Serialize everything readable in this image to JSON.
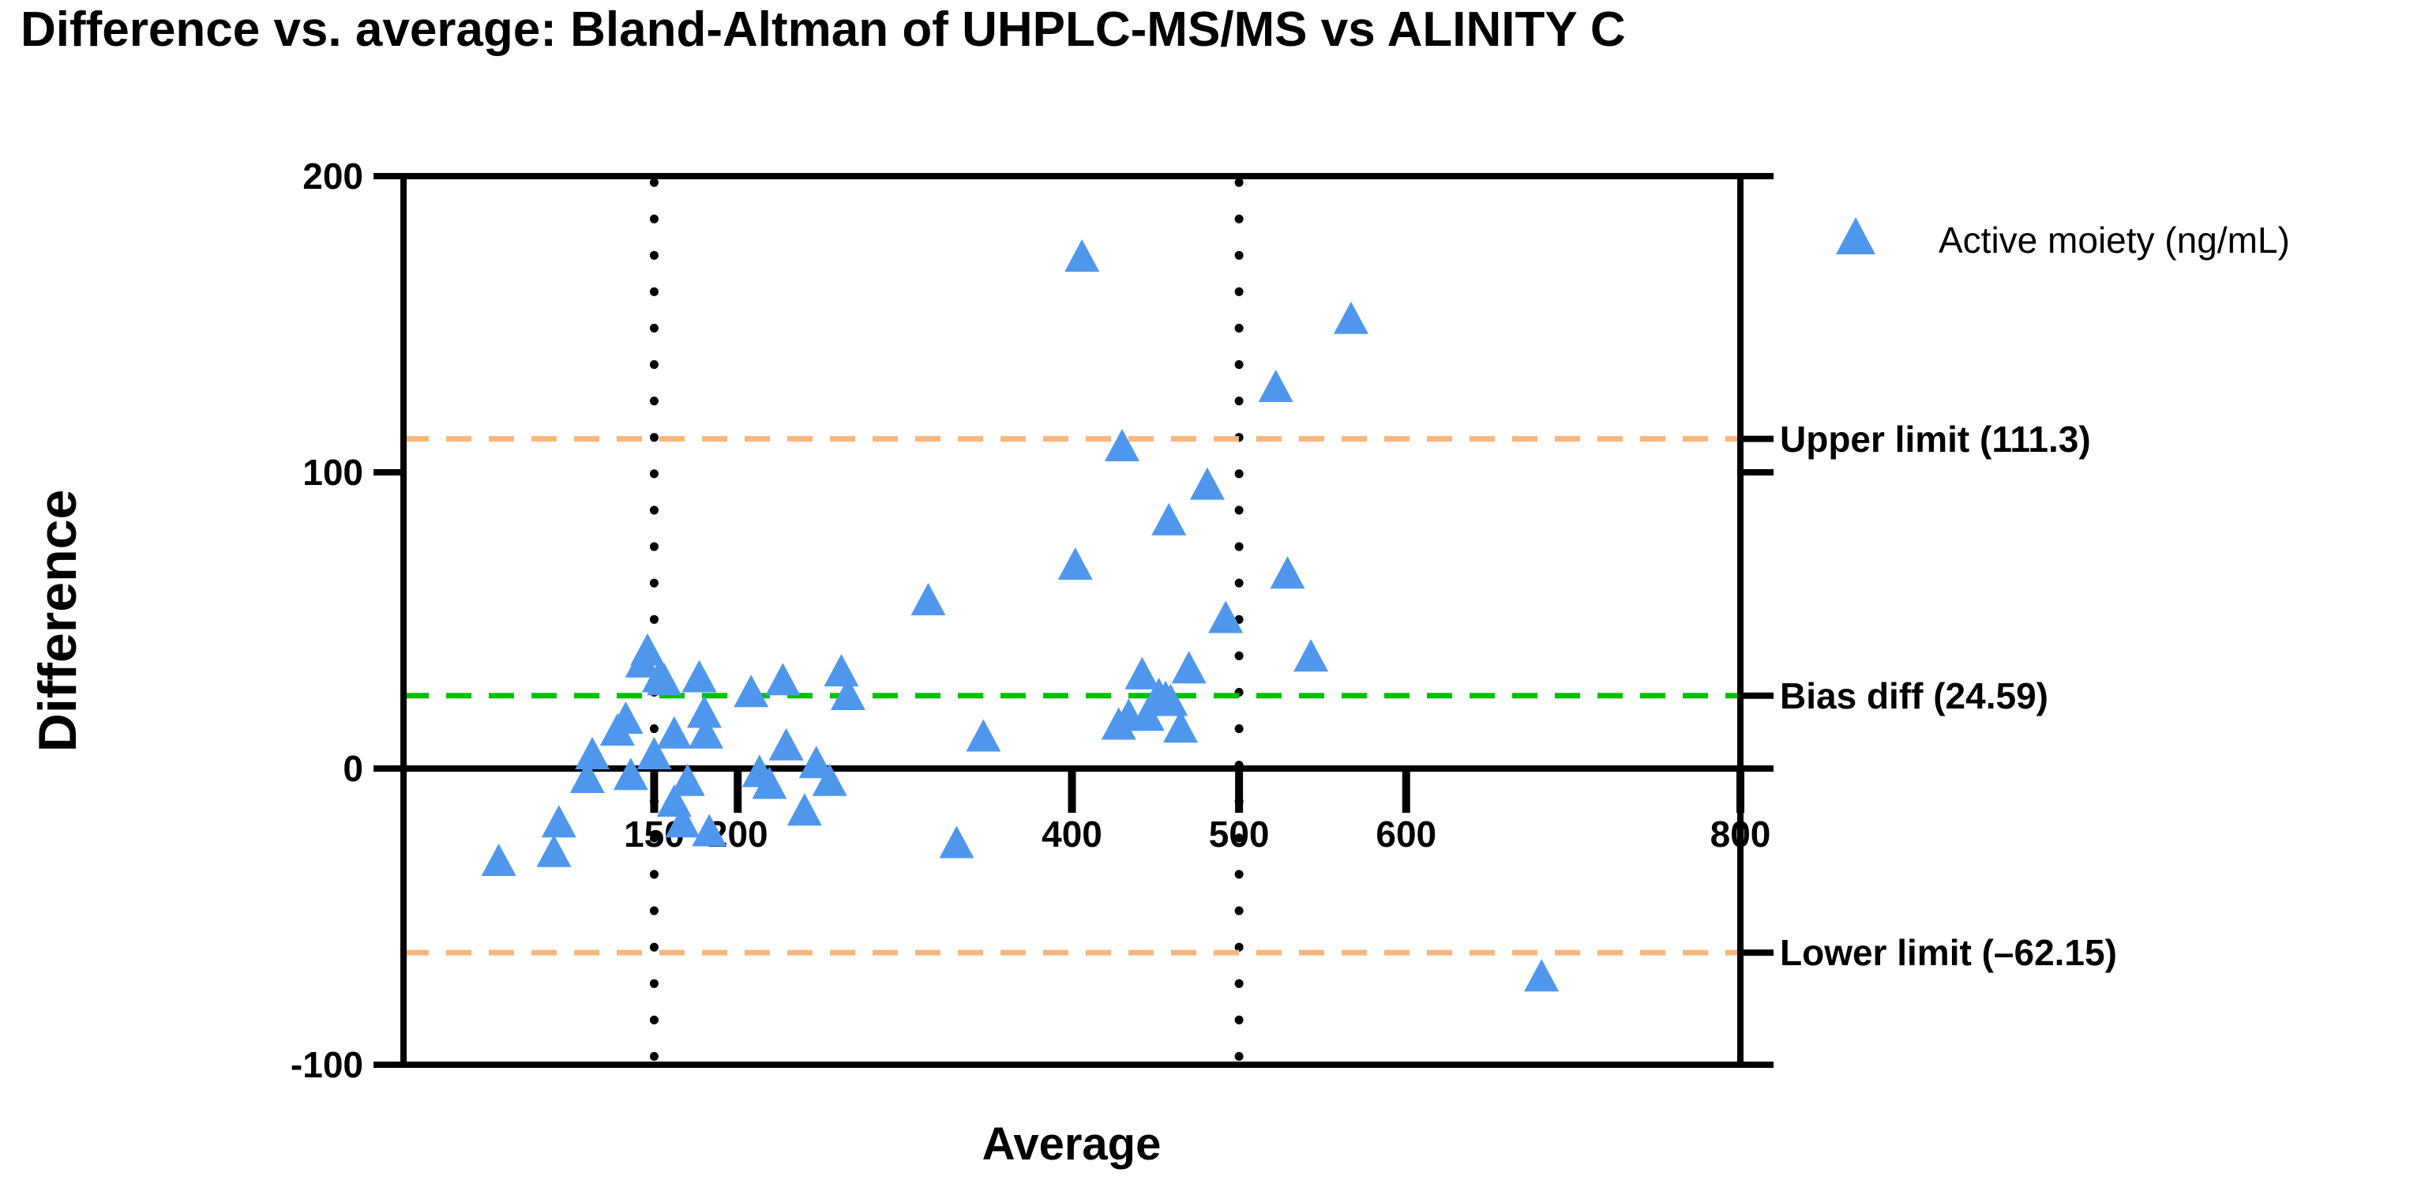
{
  "title": "Difference vs. average: Bland-Altman of UHPLC-MS/MS vs ALINITY C",
  "legend": {
    "label": "Active moiety (ng/mL)",
    "marker": "triangle",
    "marker_color": "#4F97ED"
  },
  "annotations": {
    "upper": "Upper limit (111.3)",
    "bias": "Bias diff (24.59)",
    "lower": "Lower limit (–62.15)"
  },
  "colors": {
    "points": "#4F97ED",
    "limit_lines": "#F6B67D",
    "bias_line": "#06BE06",
    "axis": "#000000",
    "background": "#FFFFFF"
  },
  "chart_data": {
    "type": "scatter",
    "title": "Difference vs. average: Bland-Altman of UHPLC-MS/MS vs ALINITY C",
    "xlabel": "Average",
    "ylabel": "Difference",
    "xlim": [
      0,
      800
    ],
    "ylim": [
      -100,
      200
    ],
    "x_ticks": [
      150,
      200,
      400,
      500,
      600,
      800
    ],
    "y_ticks": [
      200,
      100,
      0,
      -100
    ],
    "right_axis_ticks": [
      200,
      111.3,
      100,
      24.59,
      0,
      -62.15,
      -100
    ],
    "x_axis_position": "at y=0 with ticks below",
    "grid": false,
    "legend_position": "outside-right-top",
    "reference_lines": [
      {
        "name": "upper_limit",
        "value": 111.3,
        "style": "dashed",
        "color": "#F6B67D",
        "label": "Upper limit (111.3)"
      },
      {
        "name": "bias",
        "value": 24.59,
        "style": "dashed",
        "color": "#06BE06",
        "label": "Bias diff (24.59)"
      },
      {
        "name": "lower_limit",
        "value": -62.15,
        "style": "dashed",
        "color": "#F6B67D",
        "label": "Lower limit (–62.15)"
      },
      {
        "name": "zero_line",
        "value": 0,
        "style": "solid",
        "color": "#000000"
      }
    ],
    "vertical_reference_lines": [
      {
        "value": 150,
        "style": "dotted",
        "color": "#000000"
      },
      {
        "value": 500,
        "style": "dotted",
        "color": "#000000"
      }
    ],
    "series": [
      {
        "name": "Active moiety (ng/mL)",
        "marker": "triangle",
        "color": "#4F97ED",
        "points": [
          [
            57,
            -32
          ],
          [
            90,
            -29
          ],
          [
            93,
            -19
          ],
          [
            110,
            -4
          ],
          [
            113,
            4
          ],
          [
            128,
            12
          ],
          [
            133,
            16
          ],
          [
            136,
            -3
          ],
          [
            143,
            35
          ],
          [
            146,
            39
          ],
          [
            150,
            4
          ],
          [
            153,
            30
          ],
          [
            156,
            29
          ],
          [
            162,
            11
          ],
          [
            162,
            -12
          ],
          [
            167,
            -19
          ],
          [
            170,
            -5
          ],
          [
            177,
            30
          ],
          [
            180,
            18
          ],
          [
            181,
            11
          ],
          [
            183,
            -22
          ],
          [
            208,
            25
          ],
          [
            213,
            -2
          ],
          [
            219,
            -6
          ],
          [
            227,
            29
          ],
          [
            229,
            7
          ],
          [
            240,
            -15
          ],
          [
            247,
            1
          ],
          [
            255,
            -5
          ],
          [
            262,
            32
          ],
          [
            266,
            24
          ],
          [
            314,
            56
          ],
          [
            331,
            -26
          ],
          [
            347,
            10
          ],
          [
            402,
            68
          ],
          [
            406,
            172
          ],
          [
            428,
            14
          ],
          [
            430,
            108
          ],
          [
            434,
            17
          ],
          [
            442,
            31
          ],
          [
            445,
            17
          ],
          [
            452,
            24
          ],
          [
            456,
            23
          ],
          [
            458,
            83
          ],
          [
            459,
            22
          ],
          [
            465,
            13
          ],
          [
            470,
            33
          ],
          [
            481,
            95
          ],
          [
            492,
            50
          ],
          [
            522,
            128
          ],
          [
            529,
            65
          ],
          [
            543,
            37
          ],
          [
            567,
            151
          ],
          [
            681,
            -71
          ]
        ]
      }
    ]
  }
}
